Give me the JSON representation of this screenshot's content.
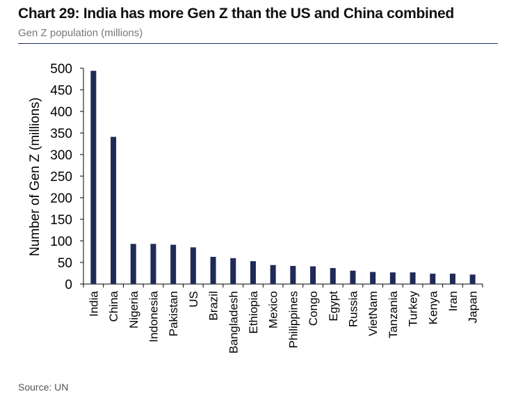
{
  "title": "Chart 29: India has more Gen Z than the US and China combined",
  "subtitle": "Gen Z population (millions)",
  "source": "Source: UN",
  "colors": {
    "bar": "#1f2a57",
    "rule": "#1f2a6b"
  },
  "chart_data": {
    "type": "bar",
    "title": "Chart 29: India has more Gen Z than the US and China combined",
    "subtitle": "Gen Z population (millions)",
    "xlabel": "",
    "ylabel": "Number of Gen Z (millions)",
    "ylim": [
      0,
      500
    ],
    "yticks": [
      0,
      50,
      100,
      150,
      200,
      250,
      300,
      350,
      400,
      450,
      500
    ],
    "grid": false,
    "categories": [
      "India",
      "China",
      "Nigeria",
      "Indonesia",
      "Pakistan",
      "US",
      "Brazil",
      "Bangladesh",
      "Ethiopia",
      "Mexico",
      "Philippines",
      "Congo",
      "Egypt",
      "Russia",
      "VietNam",
      "Tanzania",
      "Turkey",
      "Kenya",
      "Iran",
      "Japan"
    ],
    "values": [
      494,
      341,
      93,
      93,
      91,
      85,
      63,
      60,
      53,
      44,
      42,
      41,
      37,
      31,
      28,
      27,
      27,
      24,
      24,
      22
    ]
  }
}
